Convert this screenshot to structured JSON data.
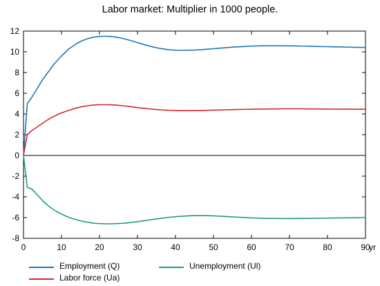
{
  "chart_data": {
    "type": "line",
    "title": "Labor market: Multiplier in 1000 people.",
    "xlabel": "yr",
    "ylabel": "",
    "xlim": [
      0,
      90
    ],
    "ylim": [
      -8,
      12
    ],
    "xticks": [
      0,
      10,
      20,
      30,
      40,
      50,
      60,
      70,
      80,
      90
    ],
    "yticks": [
      -8,
      -6,
      -4,
      -2,
      0,
      2,
      4,
      6,
      8,
      10,
      12
    ],
    "grid": false,
    "legend_position": "bottom",
    "series": [
      {
        "name": "Employment (Q)",
        "color": "#1f77b4",
        "x": [
          0,
          1,
          2,
          3,
          4,
          5,
          6,
          7,
          8,
          9,
          10,
          11,
          12,
          13,
          14,
          15,
          16,
          17,
          18,
          19,
          20,
          21,
          22,
          23,
          24,
          25,
          26,
          27,
          28,
          29,
          30,
          31,
          32,
          33,
          34,
          35,
          36,
          37,
          38,
          39,
          40,
          41,
          42,
          43,
          44,
          45,
          46,
          47,
          48,
          49,
          50,
          51,
          52,
          53,
          54,
          55,
          56,
          57,
          58,
          59,
          60,
          61,
          62,
          63,
          64,
          65,
          66,
          67,
          68,
          69,
          70,
          71,
          72,
          73,
          74,
          75,
          76,
          77,
          78,
          79,
          80,
          81,
          82,
          83,
          84,
          85,
          86,
          87,
          88,
          89,
          90
        ],
        "values": [
          0,
          5.0,
          5.5,
          6.1,
          6.7,
          7.3,
          7.8,
          8.3,
          8.8,
          9.2,
          9.6,
          9.95,
          10.3,
          10.55,
          10.8,
          11.0,
          11.15,
          11.28,
          11.38,
          11.44,
          11.48,
          11.5,
          11.5,
          11.48,
          11.44,
          11.38,
          11.3,
          11.21,
          11.11,
          11.0,
          10.89,
          10.78,
          10.67,
          10.57,
          10.48,
          10.39,
          10.32,
          10.26,
          10.21,
          10.18,
          10.16,
          10.15,
          10.15,
          10.15,
          10.16,
          10.17,
          10.19,
          10.21,
          10.24,
          10.27,
          10.3,
          10.33,
          10.36,
          10.39,
          10.42,
          10.45,
          10.47,
          10.49,
          10.51,
          10.53,
          10.55,
          10.56,
          10.57,
          10.58,
          10.58,
          10.58,
          10.58,
          10.58,
          10.58,
          10.58,
          10.57,
          10.57,
          10.56,
          10.55,
          10.55,
          10.54,
          10.53,
          10.52,
          10.51,
          10.5,
          10.5,
          10.49,
          10.48,
          10.47,
          10.46,
          10.45,
          10.45,
          10.44,
          10.43,
          10.42,
          10.42
        ]
      },
      {
        "name": "Labor force (Ua)",
        "color": "#d62728",
        "x": [
          0,
          1,
          2,
          3,
          4,
          5,
          6,
          7,
          8,
          9,
          10,
          11,
          12,
          13,
          14,
          15,
          16,
          17,
          18,
          19,
          20,
          21,
          22,
          23,
          24,
          25,
          26,
          27,
          28,
          29,
          30,
          31,
          32,
          33,
          34,
          35,
          36,
          37,
          38,
          39,
          40,
          41,
          42,
          43,
          44,
          45,
          46,
          47,
          48,
          49,
          50,
          51,
          52,
          53,
          54,
          55,
          56,
          57,
          58,
          59,
          60,
          61,
          62,
          63,
          64,
          65,
          66,
          67,
          68,
          69,
          70,
          71,
          72,
          73,
          74,
          75,
          76,
          77,
          78,
          79,
          80,
          81,
          82,
          83,
          84,
          85,
          86,
          87,
          88,
          89,
          90
        ],
        "values": [
          0,
          2.0,
          2.35,
          2.6,
          2.85,
          3.1,
          3.35,
          3.57,
          3.77,
          3.95,
          4.1,
          4.23,
          4.36,
          4.48,
          4.58,
          4.67,
          4.74,
          4.8,
          4.85,
          4.88,
          4.9,
          4.9,
          4.9,
          4.89,
          4.87,
          4.84,
          4.8,
          4.76,
          4.72,
          4.67,
          4.62,
          4.58,
          4.54,
          4.5,
          4.46,
          4.43,
          4.4,
          4.38,
          4.36,
          4.35,
          4.34,
          4.33,
          4.33,
          4.33,
          4.33,
          4.33,
          4.34,
          4.34,
          4.35,
          4.36,
          4.37,
          4.38,
          4.39,
          4.4,
          4.41,
          4.42,
          4.43,
          4.44,
          4.45,
          4.45,
          4.46,
          4.47,
          4.47,
          4.48,
          4.48,
          4.49,
          4.49,
          4.49,
          4.5,
          4.5,
          4.5,
          4.5,
          4.5,
          4.5,
          4.49,
          4.49,
          4.49,
          4.49,
          4.48,
          4.48,
          4.48,
          4.48,
          4.47,
          4.47,
          4.47,
          4.47,
          4.46,
          4.46,
          4.46,
          4.46,
          4.45
        ]
      },
      {
        "name": "Unemployment (Ul)",
        "color": "#1a9e77",
        "x": [
          0,
          1,
          2,
          3,
          4,
          5,
          6,
          7,
          8,
          9,
          10,
          11,
          12,
          13,
          14,
          15,
          16,
          17,
          18,
          19,
          20,
          21,
          22,
          23,
          24,
          25,
          26,
          27,
          28,
          29,
          30,
          31,
          32,
          33,
          34,
          35,
          36,
          37,
          38,
          39,
          40,
          41,
          42,
          43,
          44,
          45,
          46,
          47,
          48,
          49,
          50,
          51,
          52,
          53,
          54,
          55,
          56,
          57,
          58,
          59,
          60,
          61,
          62,
          63,
          64,
          65,
          66,
          67,
          68,
          69,
          70,
          71,
          72,
          73,
          74,
          75,
          76,
          77,
          78,
          79,
          80,
          81,
          82,
          83,
          84,
          85,
          86,
          87,
          88,
          89,
          90
        ],
        "values": [
          0,
          -3.1,
          -3.2,
          -3.55,
          -3.95,
          -4.35,
          -4.7,
          -5.0,
          -5.25,
          -5.47,
          -5.66,
          -5.83,
          -5.98,
          -6.1,
          -6.21,
          -6.31,
          -6.39,
          -6.45,
          -6.51,
          -6.55,
          -6.58,
          -6.59,
          -6.6,
          -6.6,
          -6.59,
          -6.57,
          -6.55,
          -6.52,
          -6.48,
          -6.44,
          -6.39,
          -6.34,
          -6.29,
          -6.24,
          -6.18,
          -6.13,
          -6.08,
          -6.03,
          -5.99,
          -5.95,
          -5.91,
          -5.88,
          -5.86,
          -5.84,
          -5.82,
          -5.81,
          -5.81,
          -5.81,
          -5.81,
          -5.82,
          -5.83,
          -5.85,
          -5.87,
          -5.89,
          -5.91,
          -5.93,
          -5.95,
          -5.97,
          -5.99,
          -6.01,
          -6.03,
          -6.04,
          -6.05,
          -6.06,
          -6.07,
          -6.08,
          -6.08,
          -6.09,
          -6.09,
          -6.09,
          -6.09,
          -6.09,
          -6.08,
          -6.08,
          -6.08,
          -6.07,
          -6.07,
          -6.06,
          -6.06,
          -6.05,
          -6.05,
          -6.04,
          -6.04,
          -6.03,
          -6.03,
          -6.02,
          -6.02,
          -6.01,
          -6.01,
          -6.0,
          -6.0
        ]
      }
    ]
  },
  "legend": {
    "items": [
      {
        "label": "Employment (Q)",
        "color": "#1f77b4"
      },
      {
        "label": "Unemployment (Ul)",
        "color": "#1a9e77"
      },
      {
        "label": "Labor force (Ua)",
        "color": "#d62728"
      }
    ]
  }
}
